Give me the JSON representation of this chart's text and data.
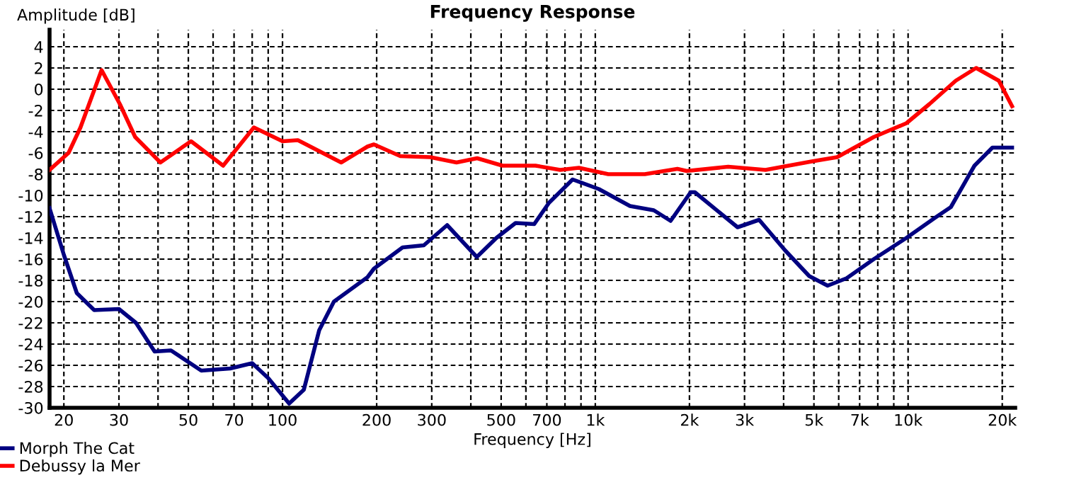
{
  "chart_data": {
    "type": "line",
    "title": "Frequency Response",
    "xlabel": "Frequency [Hz]",
    "ylabel": "Amplitude [dB]",
    "log": "x",
    "grid": true,
    "legend": "bottom left",
    "marker": "none",
    "line_style": "solid",
    "xlim": [
      18,
      22000
    ],
    "ylim": [
      -30,
      5.6
    ],
    "xticks": [
      20,
      30,
      {
        "value": 40,
        "label": null
      },
      50,
      {
        "value": 60,
        "label": null
      },
      70,
      {
        "value": 80,
        "label": null
      },
      {
        "value": 90,
        "label": null
      },
      100,
      200,
      300,
      {
        "value": 400,
        "label": null
      },
      500,
      {
        "value": 600,
        "label": null
      },
      700,
      {
        "value": 800,
        "label": null
      },
      {
        "value": 900,
        "label": null
      },
      {
        "value": 1000,
        "label": "1k"
      },
      {
        "value": 2000,
        "label": "2k"
      },
      {
        "value": 3000,
        "label": "3k"
      },
      {
        "value": 4000,
        "label": null
      },
      {
        "value": 5000,
        "label": "5k"
      },
      {
        "value": 6000,
        "label": null
      },
      {
        "value": 7000,
        "label": "7k"
      },
      {
        "value": 8000,
        "label": null
      },
      {
        "value": 9000,
        "label": null
      },
      {
        "value": 10000,
        "label": "10k"
      },
      {
        "value": 20000,
        "label": "20k"
      }
    ],
    "yticks": [
      -30,
      -28,
      -26,
      -24,
      -22,
      -20,
      -18,
      -16,
      -14,
      -12,
      -10,
      -8,
      -6,
      -4,
      -2,
      0,
      2,
      4
    ],
    "series": [
      {
        "name": "Morph The Cat",
        "color": "#000080",
        "x": [
          18,
          20,
          22,
          25,
          30,
          34,
          39,
          44,
          55,
          68,
          80,
          90,
          105,
          117,
          131,
          146,
          187,
          196,
          242,
          283,
          336,
          418,
          483,
          556,
          638,
          711,
          846,
          1026,
          1291,
          1538,
          1741,
          2018,
          2080,
          2850,
          3340,
          4050,
          4830,
          5530,
          6360,
          7770,
          9880,
          12200,
          13700,
          16300,
          18600,
          21500
        ],
        "values": [
          -11.2,
          -15.6,
          -19.2,
          -20.8,
          -20.7,
          -22.0,
          -24.7,
          -24.6,
          -26.5,
          -26.3,
          -25.8,
          -27.2,
          -29.6,
          -28.3,
          -22.7,
          -20.0,
          -17.7,
          -16.9,
          -14.9,
          -14.7,
          -12.8,
          -15.8,
          -14.0,
          -12.6,
          -12.7,
          -10.7,
          -8.5,
          -9.4,
          -11.0,
          -11.4,
          -12.4,
          -9.7,
          -9.7,
          -13.0,
          -12.3,
          -15.2,
          -17.6,
          -18.5,
          -17.8,
          -16.0,
          -14.0,
          -12.1,
          -11.1,
          -7.2,
          -5.5,
          -5.5
        ]
      },
      {
        "name": "Debussy la Mer",
        "color": "#ff0000",
        "x": [
          18,
          20.7,
          22.6,
          26.4,
          30.2,
          33.8,
          40.7,
          51,
          64.6,
          81,
          100,
          112,
          154,
          187,
          196,
          238,
          297,
          360,
          419,
          505,
          644,
          772,
          886,
          1100,
          1440,
          1830,
          1960,
          2660,
          3500,
          4920,
          5930,
          7770,
          9880,
          11700,
          14200,
          16500,
          19500,
          21500
        ],
        "values": [
          -7.6,
          -6.0,
          -3.6,
          1.8,
          -1.4,
          -4.5,
          -6.9,
          -4.9,
          -7.2,
          -3.6,
          -4.9,
          -4.8,
          -6.9,
          -5.4,
          -5.2,
          -6.3,
          -6.4,
          -6.9,
          -6.5,
          -7.2,
          -7.2,
          -7.6,
          -7.4,
          -8.0,
          -8.0,
          -7.5,
          -7.7,
          -7.3,
          -7.6,
          -6.8,
          -6.4,
          -4.5,
          -3.2,
          -1.4,
          0.8,
          2.0,
          0.8,
          -1.6
        ]
      }
    ]
  }
}
